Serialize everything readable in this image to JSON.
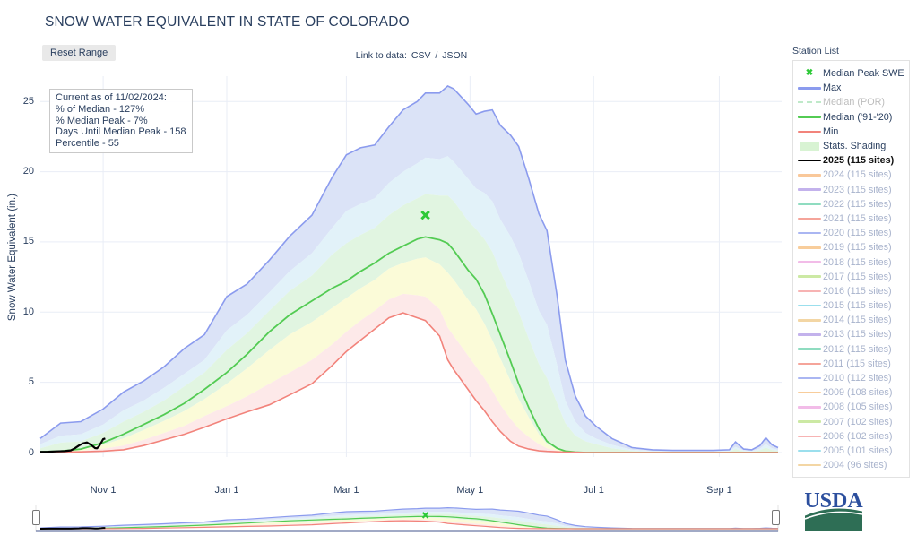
{
  "title": "SNOW WATER EQUIVALENT IN STATE OF COLORADO",
  "toolbar": {
    "reset_button": "Reset Range",
    "link_prefix": "Link to data:",
    "csv_label": "CSV",
    "slash_sep": "/",
    "json_label": "JSON",
    "station_list": "Station List"
  },
  "info_box": {
    "lines": [
      "Current as of 11/02/2024:",
      "% of Median - 127%",
      "% Median Peak - 7%",
      "Days Until Median Peak - 158",
      "Percentile - 55"
    ]
  },
  "legend": {
    "items": [
      {
        "label": "Median Peak SWE",
        "type": "marker-x",
        "color": "#2dc937",
        "text_color": "#2a3f5f",
        "bold": false
      },
      {
        "label": "Max",
        "type": "line",
        "color": "#8b9bee",
        "text_color": "#2a3f5f",
        "bold": false
      },
      {
        "label": "Median (POR)",
        "type": "dash",
        "color": "#bfe9c9",
        "text_color": "#bdbdbd",
        "bold": false
      },
      {
        "label": "Median ('91-'20)",
        "type": "line",
        "color": "#53cb53",
        "text_color": "#2a3f5f",
        "bold": false
      },
      {
        "label": "Min",
        "type": "line",
        "color": "#f2837b",
        "text_color": "#2a3f5f",
        "bold": false
      },
      {
        "label": "Stats. Shading",
        "type": "patch",
        "color": "#d8f3d3",
        "text_color": "#2a3f5f",
        "bold": false
      },
      {
        "label": "2025 (115 sites)",
        "type": "line",
        "color": "#000000",
        "text_color": "#111111",
        "bold": true
      },
      {
        "label": "2024 (115 sites)",
        "type": "line",
        "color": "#f9c89a",
        "text_color": "#a8b3cc",
        "bold": false
      },
      {
        "label": "2023 (115 sites)",
        "type": "line",
        "color": "#c3b2ec",
        "text_color": "#a8b3cc",
        "bold": false
      },
      {
        "label": "2022 (115 sites)",
        "type": "line",
        "color": "#8fdcc0",
        "text_color": "#a8b3cc",
        "bold": false
      },
      {
        "label": "2021 (115 sites)",
        "type": "line",
        "color": "#f5a49a",
        "text_color": "#a8b3cc",
        "bold": false
      },
      {
        "label": "2020 (115 sites)",
        "type": "line",
        "color": "#aab6f2",
        "text_color": "#a8b3cc",
        "bold": false
      },
      {
        "label": "2019 (115 sites)",
        "type": "line",
        "color": "#f8cd9b",
        "text_color": "#a8b3cc",
        "bold": false
      },
      {
        "label": "2018 (115 sites)",
        "type": "line",
        "color": "#f2bce8",
        "text_color": "#a8b3cc",
        "bold": false
      },
      {
        "label": "2017 (115 sites)",
        "type": "line",
        "color": "#cce9a4",
        "text_color": "#a8b3cc",
        "bold": false
      },
      {
        "label": "2016 (115 sites)",
        "type": "line",
        "color": "#f7b3b3",
        "text_color": "#a8b3cc",
        "bold": false
      },
      {
        "label": "2015 (115 sites)",
        "type": "line",
        "color": "#9bdfed",
        "text_color": "#a8b3cc",
        "bold": false
      },
      {
        "label": "2014 (115 sites)",
        "type": "line",
        "color": "#f3d6a4",
        "text_color": "#a8b3cc",
        "bold": false
      },
      {
        "label": "2013 (115 sites)",
        "type": "line",
        "color": "#c3b2ec",
        "text_color": "#a8b3cc",
        "bold": false
      },
      {
        "label": "2012 (115 sites)",
        "type": "line",
        "color": "#8fdcc0",
        "text_color": "#a8b3cc",
        "bold": false
      },
      {
        "label": "2011 (115 sites)",
        "type": "line",
        "color": "#f5a49a",
        "text_color": "#a8b3cc",
        "bold": false
      },
      {
        "label": "2010 (112 sites)",
        "type": "line",
        "color": "#aab6f2",
        "text_color": "#a8b3cc",
        "bold": false
      },
      {
        "label": "2009 (108 sites)",
        "type": "line",
        "color": "#f8cd9b",
        "text_color": "#a8b3cc",
        "bold": false
      },
      {
        "label": "2008 (105 sites)",
        "type": "line",
        "color": "#f2bce8",
        "text_color": "#a8b3cc",
        "bold": false
      },
      {
        "label": "2007 (102 sites)",
        "type": "line",
        "color": "#cce9a4",
        "text_color": "#a8b3cc",
        "bold": false
      },
      {
        "label": "2006 (102 sites)",
        "type": "line",
        "color": "#f7b3b3",
        "text_color": "#a8b3cc",
        "bold": false
      },
      {
        "label": "2005 (101 sites)",
        "type": "line",
        "color": "#9bdfed",
        "text_color": "#a8b3cc",
        "bold": false
      },
      {
        "label": "2004 (96 sites)",
        "type": "line",
        "color": "#f3d6a4",
        "text_color": "#a8b3cc",
        "bold": false
      }
    ]
  },
  "usda": {
    "text": "USDA"
  },
  "chart_data": {
    "type": "area",
    "title": "Snow Water Equivalent in State of Colorado, water year 2025 vs. statistics",
    "ylabel": "Snow Water Equivalent (in.)",
    "ylim": [
      0,
      26.8
    ],
    "yticks": [
      0,
      5,
      10,
      15,
      20,
      25
    ],
    "xticks": [
      {
        "label": "Nov 1",
        "day": 31
      },
      {
        "label": "Jan 1",
        "day": 92
      },
      {
        "label": "Mar 1",
        "day": 151
      },
      {
        "label": "May 1",
        "day": 212
      },
      {
        "label": "Jul 1",
        "day": 273
      },
      {
        "label": "Sep 1",
        "day": 335
      }
    ],
    "x_is_days_from_oct1": true,
    "x": [
      0,
      10,
      20,
      31,
      41,
      51,
      61,
      71,
      81,
      92,
      102,
      113,
      123,
      134,
      144,
      151,
      158,
      165,
      172,
      179,
      186,
      190,
      197,
      201,
      204,
      211,
      215,
      219,
      223,
      227,
      232,
      236,
      241,
      246,
      250,
      255,
      259,
      264,
      269,
      274,
      282,
      292,
      302,
      312,
      322,
      332,
      340,
      343,
      347,
      351,
      355,
      358,
      361,
      364
    ],
    "series": {
      "max": [
        1.0,
        2.1,
        2.2,
        3.1,
        4.3,
        5.1,
        6.1,
        7.4,
        8.4,
        11.1,
        12.0,
        13.7,
        15.4,
        16.9,
        19.6,
        21.2,
        21.7,
        21.9,
        23.2,
        24.4,
        25.0,
        25.6,
        25.6,
        26.1,
        25.9,
        24.8,
        24.1,
        24.3,
        24.4,
        23.3,
        22.6,
        21.8,
        19.5,
        17.0,
        15.8,
        11.1,
        6.6,
        4.0,
        2.6,
        1.9,
        1.0,
        0.35,
        0.2,
        0.15,
        0.15,
        0.15,
        0.2,
        0.75,
        0.25,
        0.2,
        0.5,
        1.05,
        0.55,
        0.35
      ],
      "p90": [
        0.6,
        1.2,
        1.3,
        2.0,
        3.0,
        3.7,
        4.6,
        5.6,
        6.6,
        8.7,
        9.8,
        11.4,
        12.9,
        14.2,
        16.0,
        17.2,
        17.7,
        18.1,
        19.2,
        20.0,
        20.6,
        21.0,
        20.9,
        21.1,
        20.7,
        19.5,
        18.8,
        18.5,
        17.9,
        16.6,
        15.4,
        14.2,
        12.2,
        10.1,
        9.1,
        6.2,
        3.7,
        2.2,
        1.4,
        1.0,
        0.55,
        0.2,
        0.1,
        0.1,
        0.1,
        0.1,
        0.12,
        0.4,
        0.15,
        0.1,
        0.28,
        0.6,
        0.3,
        0.2
      ],
      "p70": [
        0.3,
        0.7,
        0.8,
        1.4,
        2.2,
        2.9,
        3.7,
        4.7,
        5.7,
        7.3,
        8.5,
        10.1,
        11.5,
        12.6,
        14.1,
        14.9,
        15.5,
        16.0,
        16.9,
        17.6,
        18.1,
        18.4,
        18.3,
        18.3,
        17.9,
        16.5,
        15.9,
        15.2,
        14.3,
        12.9,
        11.3,
        10.0,
        8.1,
        6.3,
        5.3,
        3.5,
        2.1,
        1.2,
        0.8,
        0.6,
        0.3,
        0.12,
        0.06,
        0.06,
        0.06,
        0.06,
        0.07,
        0.25,
        0.09,
        0.06,
        0.16,
        0.35,
        0.18,
        0.12
      ],
      "median": [
        0.05,
        0.1,
        0.25,
        0.7,
        1.3,
        2.0,
        2.7,
        3.5,
        4.5,
        5.7,
        7.0,
        8.6,
        9.8,
        10.8,
        11.7,
        12.2,
        12.9,
        13.5,
        14.2,
        14.7,
        15.2,
        15.35,
        15.15,
        14.9,
        14.4,
        13.0,
        12.35,
        11.3,
        9.9,
        8.4,
        6.5,
        4.9,
        3.2,
        1.7,
        0.8,
        0.3,
        0.1,
        0.03,
        0,
        0,
        0,
        0,
        0,
        0,
        0,
        0,
        0,
        0,
        0,
        0,
        0,
        0,
        0,
        0
      ],
      "p30": [
        0.04,
        0.08,
        0.2,
        0.55,
        1.0,
        1.6,
        2.25,
        2.95,
        3.8,
        4.9,
        6.0,
        7.3,
        8.4,
        9.3,
        10.3,
        11.0,
        11.7,
        12.3,
        13.1,
        13.5,
        13.8,
        13.9,
        13.4,
        12.8,
        12.3,
        10.9,
        10.2,
        9.2,
        8.0,
        6.7,
        5.1,
        3.8,
        2.5,
        1.3,
        0.6,
        0.24,
        0.08,
        0.03,
        0,
        0,
        0,
        0,
        0,
        0,
        0,
        0,
        0,
        0,
        0,
        0,
        0,
        0,
        0,
        0
      ],
      "p10": [
        0.03,
        0.05,
        0.11,
        0.27,
        0.5,
        0.9,
        1.4,
        1.9,
        2.6,
        3.3,
        4.0,
        4.9,
        5.7,
        6.6,
        7.7,
        8.6,
        9.4,
        10.1,
        10.9,
        11.3,
        11.2,
        11.1,
        10.2,
        8.9,
        8.3,
        6.9,
        6.1,
        5.3,
        4.4,
        3.4,
        2.4,
        1.7,
        1.1,
        0.6,
        0.3,
        0.12,
        0.05,
        0.02,
        0,
        0,
        0,
        0,
        0,
        0,
        0,
        0,
        0,
        0,
        0,
        0,
        0,
        0,
        0,
        0
      ],
      "min": [
        0.02,
        0.03,
        0.05,
        0.1,
        0.2,
        0.5,
        0.9,
        1.3,
        1.8,
        2.4,
        2.9,
        3.4,
        4.1,
        4.9,
        6.2,
        7.2,
        8.0,
        8.8,
        9.6,
        9.95,
        9.6,
        9.4,
        8.3,
        6.6,
        5.9,
        4.5,
        3.7,
        3.0,
        2.2,
        1.5,
        0.8,
        0.45,
        0.25,
        0.12,
        0.08,
        0.05,
        0.03,
        0.02,
        0,
        0,
        0,
        0,
        0,
        0,
        0,
        0,
        0,
        0,
        0,
        0,
        0,
        0,
        0,
        0
      ]
    },
    "swe_2025": {
      "x": [
        0,
        4,
        8,
        12,
        15,
        17,
        19,
        21,
        23,
        25,
        27,
        28,
        29,
        30,
        31,
        32
      ],
      "y": [
        0.05,
        0.06,
        0.08,
        0.1,
        0.15,
        0.3,
        0.5,
        0.65,
        0.72,
        0.55,
        0.32,
        0.3,
        0.45,
        0.7,
        0.95,
        1.0
      ]
    },
    "median_peak_marker": {
      "day": 190,
      "value": 16.9
    },
    "colors": {
      "max_line": "#8b9bee",
      "median_line": "#53cb53",
      "min_line": "#f2837b",
      "swe_2025_line": "#000000",
      "marker": "#2dc937",
      "band_max_p90": "#dbe3f7",
      "band_p90_p70": "#e2f2f9",
      "band_p70_p30": "#e1f5e1",
      "band_p30_p10": "#fbfbd8",
      "band_p10_min": "#fde9e9",
      "grid": "#e9edf6",
      "slider_baseline": "#43558c",
      "usda_blue": "#2c4f9e",
      "usda_green": "#2e6e55"
    },
    "legend_position": "right",
    "grid": true
  }
}
